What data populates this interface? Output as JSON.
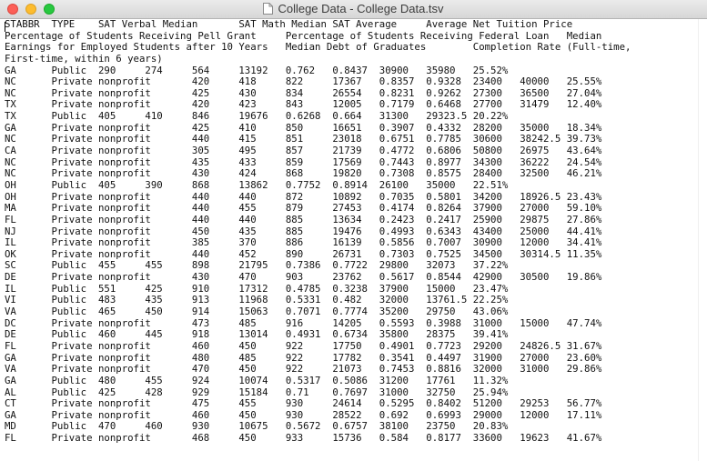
{
  "window": {
    "title": "College Data - College Data.tsv",
    "icon": "document-icon"
  },
  "editor": {
    "lines": [
      "STABBR  TYPE    SAT Verbal Median       SAT Math Median SAT Average     Average Net Tuition Price",
      "Percentage of Students Receiving Pell Grant     Percentage of Students Receiving Federal Loan   Median",
      "Earnings for Employed Students after 10 Years   Median Debt of Graduates        Completion Rate (Full-time,",
      "First-time, within 6 years)",
      "GA      Public  290     274     564     13192   0.762   0.8437  30900   35980   25.52%",
      "NC      Private nonprofit       420     418     822     17367   0.8357  0.9328  23400   40000   25.55%",
      "NC      Private nonprofit       425     430     834     26554   0.8231  0.9262  27300   36500   27.04%",
      "TX      Private nonprofit       420     423     843     12005   0.7179  0.6468  27700   31479   12.40%",
      "TX      Public  405     410     846     19676   0.6268  0.664   31300   29323.5 20.22%",
      "GA      Private nonprofit       425     410     850     16651   0.3907  0.4332  28200   35000   18.34%",
      "NC      Private nonprofit       440     415     851     23018   0.6751  0.7785  30600   38242.5 39.73%",
      "CA      Private nonprofit       305     495     857     21739   0.4772  0.6806  50800   26975   43.64%",
      "NC      Private nonprofit       435     433     859     17569   0.7443  0.8977  34300   36222   24.54%",
      "NC      Private nonprofit       430     424     868     19820   0.7308  0.8575  28400   32500   46.21%",
      "OH      Public  405     390     868     13862   0.7752  0.8914  26100   35000   22.51%",
      "OH      Private nonprofit       440     440     872     10892   0.7035  0.5801  34200   18926.5 23.43%",
      "MA      Private nonprofit       440     455     879     27453   0.4174  0.8264  37900   27000   59.10%",
      "FL      Private nonprofit       440     440     885     13634   0.2423  0.2417  25900   29875   27.86%",
      "NJ      Private nonprofit       450     435     885     19476   0.4993  0.6343  43400   25000   44.41%",
      "IL      Private nonprofit       385     370     886     16139   0.5856  0.7007  30900   12000   34.41%",
      "OK      Private nonprofit       440     452     890     26731   0.7303  0.7525  34500   30314.5 11.35%",
      "SC      Public  455     455     898     21795   0.7386  0.7722  29800   32073   37.22%",
      "DE      Private nonprofit       430     470     903     23762   0.5617  0.8544  42900   30500   19.86%",
      "IL      Public  551     425     910     17312   0.4785  0.3238  37900   15000   23.47%",
      "VI      Public  483     435     913     11968   0.5331  0.482   32000   13761.5 22.25%",
      "VA      Public  465     450     914     15063   0.7071  0.7774  35200   29750   43.06%",
      "DC      Private nonprofit       473     485     916     14205   0.5593  0.3988  31000   15000   47.74%",
      "DE      Public  460     445     918     13014   0.4931  0.6734  35800   28375   39.41%",
      "FL      Private nonprofit       460     450     922     17750   0.4901  0.7723  29200   24826.5 31.67%",
      "GA      Private nonprofit       480     485     922     17782   0.3541  0.4497  31900   27000   23.60%",
      "VA      Private nonprofit       470     450     922     21073   0.7453  0.8816  32000   31000   29.86%",
      "GA      Public  480     455     924     10074   0.5317  0.5086  31200   17761   11.32%",
      "AL      Public  425     428     929     15184   0.71    0.7697  31000   32750   25.94%",
      "CT      Private nonprofit       475     455     930     24614   0.5295  0.8402  51200   29253   56.77%",
      "GA      Private nonprofit       460     450     930     28522   0.692   0.6993  29000   12000   17.11%",
      "MD      Public  470     460     930     10675   0.5672  0.6757  38100   23750   20.83%",
      "FL      Private nonprofit       468     450     933     15736   0.584   0.8177  33600   19623   41.67%"
    ]
  }
}
